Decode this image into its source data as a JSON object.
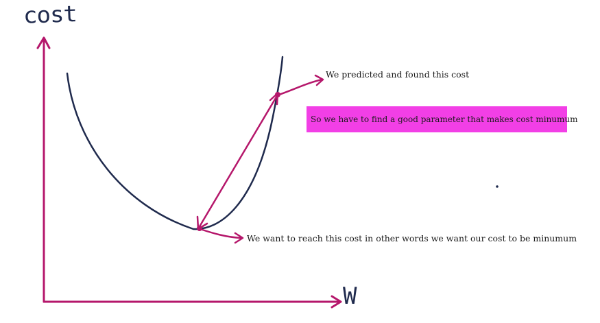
{
  "axes": {
    "y_label": "cost",
    "x_label": "W"
  },
  "annotations": {
    "predicted": "We predicted and found this cost",
    "parameter": "So we have to find a good parameter that makes cost minumum",
    "reach": "We want to reach this cost in other words we want our cost to be minumum"
  },
  "colors": {
    "axis": "#b5176b",
    "curve": "#1f2a4d",
    "highlight": "#f23fe6"
  }
}
